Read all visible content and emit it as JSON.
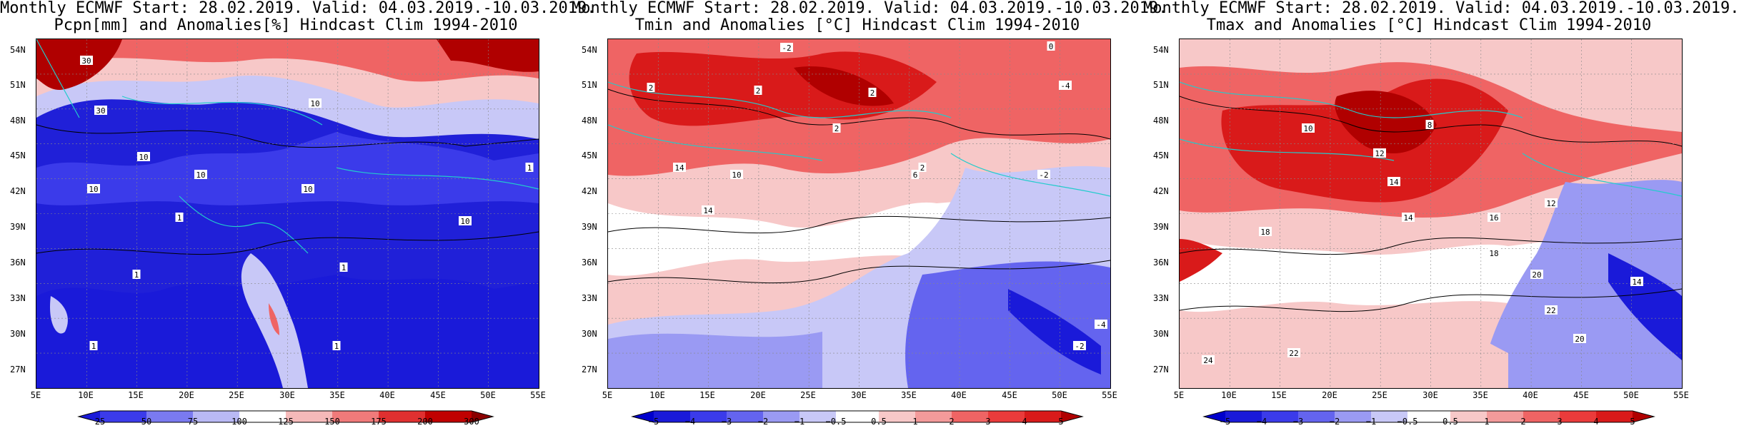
{
  "panels": [
    {
      "id": "precip",
      "title_line1": "Monthly ECMWF Start: 28.02.2019. Valid: 04.03.2019.-10.03.2019.",
      "title_line2": "Pcpn[mm] and Anomalies[%] Hindcast Clim 1994-2010",
      "colorbar_labels": [
        "25",
        "50",
        "75",
        "100",
        "125",
        "150",
        "175",
        "200",
        "300"
      ],
      "colorbar_colors": [
        "#1a1ad9",
        "#3b3bea",
        "#7a7af0",
        "#b9b9f5",
        "#ffffff",
        "#f5b9b9",
        "#f07a7a",
        "#e03030",
        "#c00000",
        "#8b0000"
      ],
      "contour_labels": [
        "30",
        "30",
        "10",
        "10",
        "10",
        "10",
        "10",
        "10",
        "1",
        "1",
        "1",
        "1",
        "1",
        "1"
      ]
    },
    {
      "id": "tmin",
      "title_line1": "Monthly ECMWF Start: 28.02.2019. Valid: 04.03.2019.-10.03.2019.",
      "title_line2": "Tmin and Anomalies [°C] Hindcast Clim 1994-2010",
      "colorbar_labels": [
        "−5",
        "−4",
        "−3",
        "−2",
        "−1",
        "−0.5",
        "0.5",
        "1",
        "2",
        "3",
        "4",
        "5"
      ],
      "colorbar_colors": [
        "#0000cc",
        "#1a1ad9",
        "#3b3bea",
        "#6464ef",
        "#9a9af3",
        "#c8c8f7",
        "#ffffff",
        "#f7c8c8",
        "#f39a9a",
        "#ef6464",
        "#ea3b3b",
        "#d91a1a",
        "#b00000"
      ],
      "contour_labels": [
        "-2",
        "2",
        "2",
        "2",
        "2",
        "2",
        "0",
        "-4",
        "-2",
        "6",
        "10",
        "14",
        "14",
        "-2",
        "-4"
      ]
    },
    {
      "id": "tmax",
      "title_line1": "Monthly ECMWF Start: 28.02.2019. Valid: 04.03.2019.-10.03.2019.",
      "title_line2": "Tmax and Anomalies [°C] Hindcast Clim 1994-2010",
      "colorbar_labels": [
        "−5",
        "−4",
        "−3",
        "−2",
        "−1",
        "−0.5",
        "0.5",
        "1",
        "2",
        "3",
        "4",
        "5"
      ],
      "colorbar_colors": [
        "#0000cc",
        "#1a1ad9",
        "#3b3bea",
        "#6464ef",
        "#9a9af3",
        "#c8c8f7",
        "#ffffff",
        "#f7c8c8",
        "#f39a9a",
        "#ef6464",
        "#ea3b3b",
        "#d91a1a",
        "#b00000"
      ],
      "contour_labels": [
        "8",
        "10",
        "12",
        "14",
        "14",
        "12",
        "16",
        "18",
        "20",
        "22",
        "20",
        "24",
        "22",
        "14",
        "18"
      ]
    }
  ],
  "lat_labels": [
    "54N",
    "51N",
    "48N",
    "45N",
    "42N",
    "39N",
    "36N",
    "33N",
    "30N",
    "27N"
  ],
  "lon_labels": [
    "5E",
    "10E",
    "15E",
    "20E",
    "25E",
    "30E",
    "35E",
    "40E",
    "45E",
    "50E",
    "55E"
  ]
}
